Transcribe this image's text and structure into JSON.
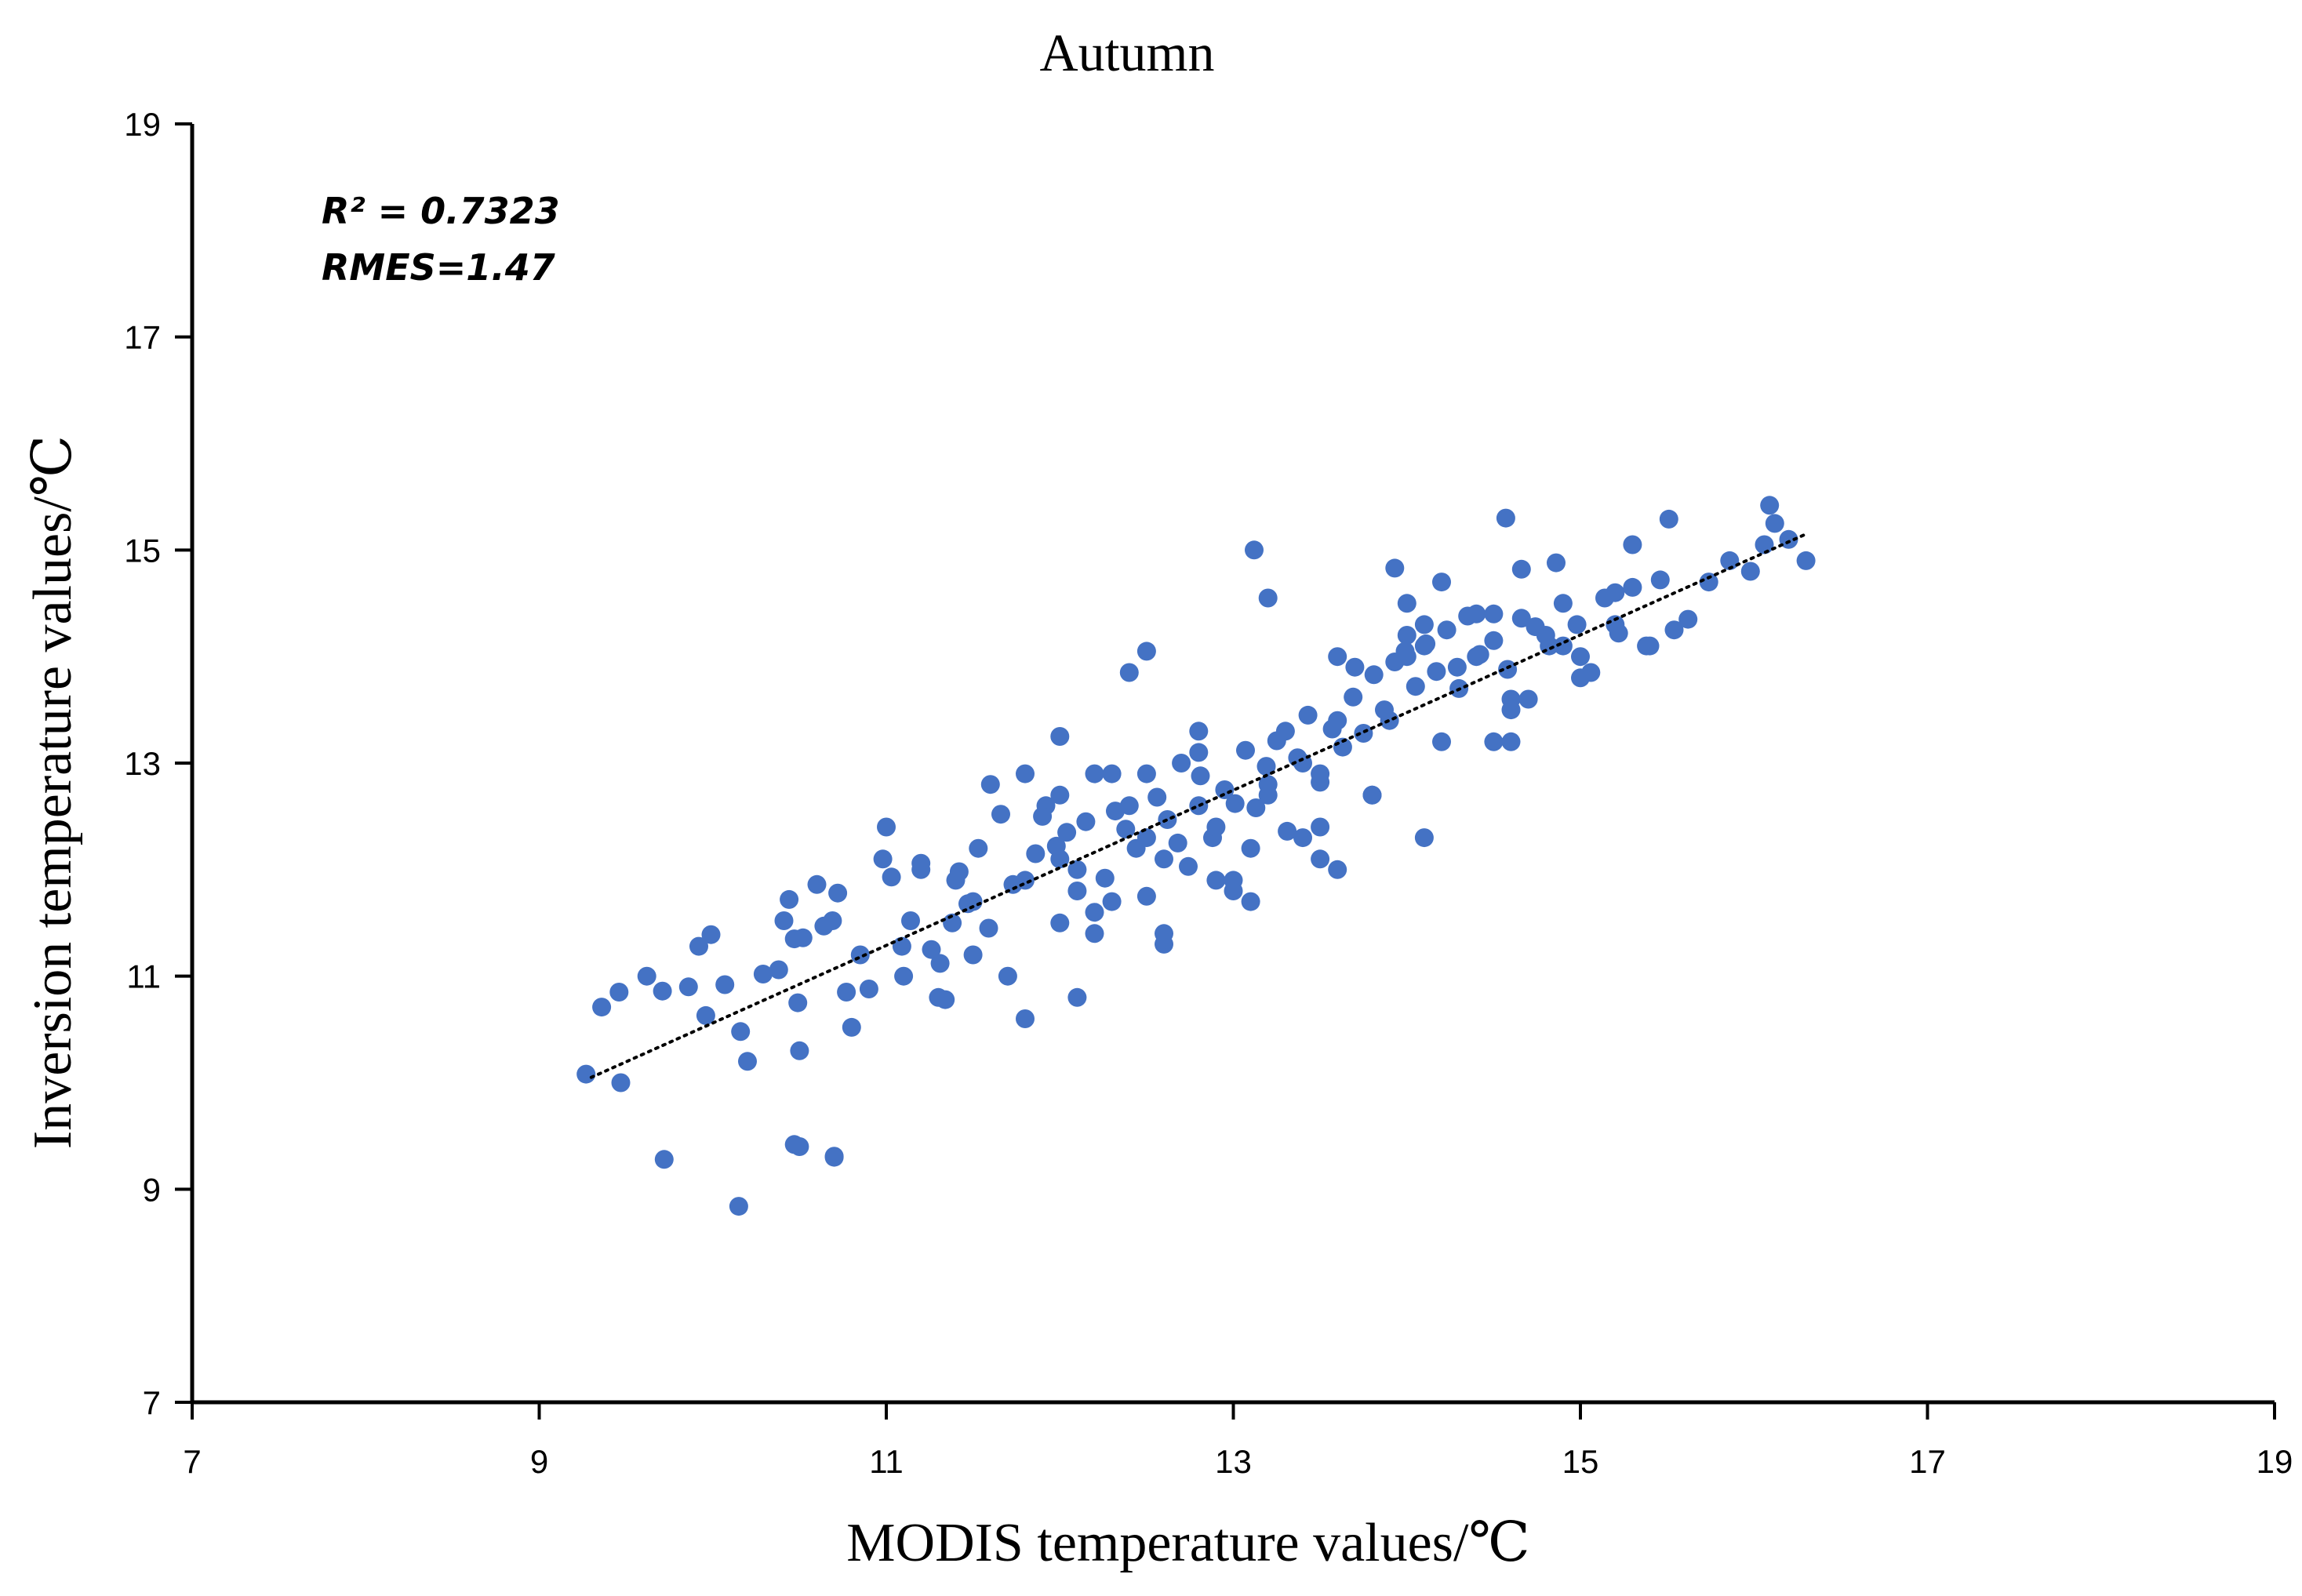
{
  "chart_data": {
    "type": "scatter",
    "title": "Autumn",
    "xlabel": "MODIS temperature values/℃",
    "ylabel": "Inversion temperature values/℃",
    "xlim": [
      7,
      19
    ],
    "ylim": [
      7,
      19
    ],
    "xticks": [
      "7",
      "9",
      "11",
      "13",
      "15",
      "17",
      "19"
    ],
    "yticks": [
      "7",
      "9",
      "11",
      "13",
      "15",
      "17",
      "19"
    ],
    "annotations": [
      "R² = 0.7323",
      "RMES=1.47"
    ],
    "grid": false,
    "legend": "none",
    "colors": {
      "points": "#4472C4",
      "trendline": "#000000",
      "axes": "#000000"
    },
    "trendline": {
      "style": "dotted",
      "x": [
        9.3,
        16.3
      ],
      "y": [
        10.05,
        15.15
      ]
    },
    "series": [
      {
        "x": [
          9.27,
          9.36,
          9.46,
          9.47,
          9.62,
          9.71,
          9.86,
          9.92,
          9.96,
          9.99,
          10.07,
          10.16,
          10.29,
          10.38,
          10.41,
          10.44,
          10.47,
          10.49,
          10.5,
          10.52,
          10.6,
          10.64,
          10.69,
          10.72,
          10.77,
          10.8,
          10.85,
          10.9,
          10.98,
          11.03,
          11.09,
          11.14,
          11.2,
          11.26,
          11.31,
          11.34,
          11.38,
          11.42,
          11.47,
          11.53,
          11.59,
          11.66,
          11.73,
          11.8,
          11.86,
          11.92,
          11.98,
          12.04,
          12.1,
          12.15,
          12.2,
          12.26,
          12.32,
          12.38,
          12.44,
          12.5,
          12.56,
          12.62,
          12.68,
          12.74,
          12.81,
          12.88,
          12.95,
          13.01,
          13.07,
          13.13,
          13.19,
          13.25,
          13.31,
          13.37,
          13.43,
          13.5,
          13.57,
          13.63,
          13.69,
          13.75,
          13.81,
          13.87,
          13.93,
          13.99,
          14.05,
          14.11,
          14.17,
          14.23,
          14.29,
          14.35,
          14.42,
          14.5,
          14.58,
          14.66,
          14.74,
          14.82,
          14.9,
          14.98,
          15.06,
          15.14,
          15.22,
          15.3,
          15.38,
          15.46,
          15.54,
          15.62,
          15.74,
          15.86,
          15.98,
          16.06,
          16.12,
          16.2,
          16.3,
          11.0,
          11.2,
          11.5,
          11.8,
          12.0,
          12.2,
          12.4,
          12.6,
          12.8,
          13.0,
          13.2,
          13.4,
          13.6,
          13.8,
          14.0,
          14.2,
          14.4,
          14.6,
          14.8,
          15.0,
          15.2,
          15.4,
          11.9,
          12.1,
          12.3,
          12.5,
          12.7,
          12.9,
          13.1,
          13.3,
          13.5,
          13.7,
          13.9,
          14.1,
          14.3,
          14.5,
          11.6,
          12.0,
          12.5,
          13.0,
          13.5,
          14.0,
          14.5,
          12.2,
          12.8,
          13.4,
          14.0,
          14.6,
          15.2,
          11.4,
          11.7,
          12.0,
          12.3,
          12.6,
          12.9,
          13.2,
          13.5,
          13.8,
          14.1,
          14.4,
          14.7,
          15.0,
          10.2,
          10.5,
          10.7,
          9.72,
          10.15,
          10.47,
          10.7,
          13.2,
          12.4,
          12.5,
          14.57,
          16.09,
          15.51,
          13.93,
          13.12,
          14.66,
          14.86,
          12.0,
          11.5,
          12.8,
          13.6,
          14.2,
          14.9,
          15.3,
          11.1,
          11.3,
          11.8,
          12.1,
          12.6,
          13.1,
          13.6,
          14.1,
          14.6
        ],
        "y": [
          10.08,
          10.71,
          10.85,
          10.0,
          11.0,
          10.86,
          10.9,
          11.28,
          10.63,
          11.39,
          10.92,
          10.48,
          11.02,
          11.06,
          11.52,
          11.72,
          11.35,
          10.75,
          10.3,
          11.36,
          11.86,
          11.47,
          11.52,
          11.78,
          10.85,
          10.52,
          11.2,
          10.88,
          12.1,
          11.93,
          11.28,
          11.52,
          12.06,
          11.25,
          11.12,
          10.78,
          11.5,
          11.98,
          11.68,
          12.2,
          11.45,
          12.52,
          11.86,
          11.9,
          12.15,
          12.6,
          12.22,
          12.35,
          11.8,
          12.45,
          12.9,
          11.92,
          12.55,
          12.38,
          12.2,
          11.75,
          12.68,
          12.47,
          12.25,
          12.03,
          12.88,
          12.3,
          12.75,
          12.62,
          13.12,
          12.58,
          12.97,
          13.21,
          12.36,
          13.05,
          13.45,
          12.82,
          13.32,
          13.15,
          13.62,
          13.28,
          13.83,
          13.5,
          13.95,
          14.05,
          13.72,
          14.12,
          13.86,
          14.25,
          13.9,
          14.38,
          14.02,
          14.15,
          13.88,
          14.36,
          14.28,
          14.1,
          14.5,
          14.3,
          13.85,
          14.55,
          14.22,
          14.65,
          14.1,
          14.72,
          14.25,
          14.35,
          14.7,
          14.9,
          14.8,
          15.05,
          15.25,
          15.1,
          14.9,
          12.4,
          12.0,
          11.2,
          12.9,
          12.1,
          11.6,
          12.6,
          12.1,
          13.1,
          11.8,
          12.8,
          12.3,
          13.4,
          12.7,
          14.0,
          13.2,
          14.4,
          13.6,
          14.2,
          13.8,
          14.6,
          14.1,
          12.5,
          12.0,
          11.7,
          12.3,
          13.0,
          12.4,
          12.2,
          13.3,
          12.9,
          13.9,
          13.4,
          14.3,
          13.7,
          14.4,
          12.8,
          11.5,
          12.9,
          11.9,
          12.4,
          14.5,
          13.2,
          11.4,
          12.6,
          13.0,
          14.2,
          13.5,
          14.3,
          11.9,
          11.0,
          12.7,
          12.9,
          11.4,
          11.9,
          12.7,
          12.1,
          12.7,
          14.1,
          14.0,
          13.6,
          14.0,
          10.2,
          9.4,
          9.3,
          9.28,
          8.84,
          9.42,
          9.31,
          14.55,
          13.85,
          14.05,
          15.3,
          15.42,
          15.29,
          14.83,
          15.0,
          14.82,
          14.88,
          13.25,
          11.7,
          13.3,
          14.0,
          14.7,
          14.1,
          15.05,
          11.0,
          10.8,
          10.6,
          10.8,
          11.3,
          11.7,
          12.0,
          12.3,
          13.2
        ]
      }
    ]
  }
}
